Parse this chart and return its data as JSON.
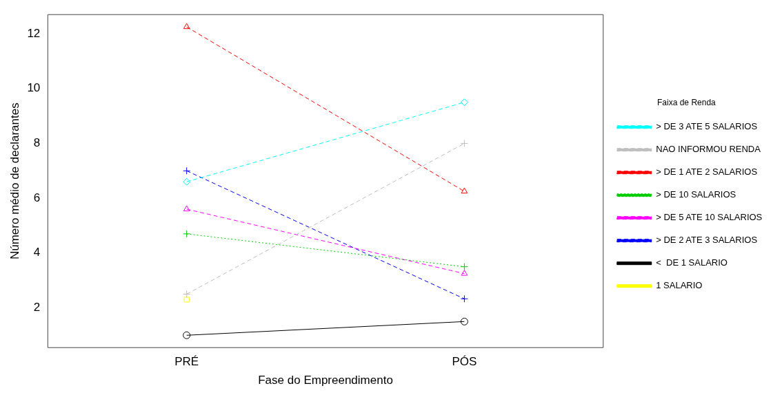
{
  "chart_data": {
    "type": "line",
    "xlabel": "Fase do Empreendimento",
    "ylabel": "Número médio de declarantes",
    "legend_title": "Faixa de Renda",
    "categories": [
      "PRÉ",
      "PÓS"
    ],
    "ylim": [
      0.55,
      12.7
    ],
    "yticks": [
      2,
      4,
      6,
      8,
      10,
      12
    ],
    "grid": false,
    "legend": "right",
    "series": [
      {
        "name": "> DE 3 ATE 5 SALARIOS",
        "color": "#00ffff",
        "values": [
          6.6,
          9.5
        ],
        "marker": "diamond",
        "line_style": "dashed"
      },
      {
        "name": "NAO INFORMOU RENDA",
        "color": "#bebebe",
        "values": [
          2.5,
          8.0
        ],
        "marker": "cross",
        "line_style": "dashed"
      },
      {
        "name": "> DE 1 ATE 2 SALARIOS",
        "color": "#ff0000",
        "values": [
          12.25,
          6.25
        ],
        "marker": "triangle",
        "line_style": "dashed"
      },
      {
        "name": "> DE 10 SALARIOS",
        "color": "#00cd00",
        "values": [
          4.7,
          3.5
        ],
        "marker": "cross",
        "line_style": "dotted"
      },
      {
        "name": "> DE 5 ATE 10 SALARIOS",
        "color": "#ff00ff",
        "values": [
          5.6,
          3.25
        ],
        "marker": "triangle",
        "line_style": "dashed"
      },
      {
        "name": "> DE 2 ATE 3 SALARIOS",
        "color": "#0000ff",
        "values": [
          7.0,
          2.33
        ],
        "marker": "cross",
        "line_style": "dashed"
      },
      {
        "name": "<  DE 1 SALARIO",
        "color": "#000000",
        "values": [
          1.0,
          1.5
        ],
        "marker": "circle",
        "line_style": "solid"
      },
      {
        "name": "1 SALARIO",
        "color": "#ffff00",
        "values": [
          2.3,
          null
        ],
        "marker": "square",
        "line_style": "solid"
      }
    ]
  }
}
